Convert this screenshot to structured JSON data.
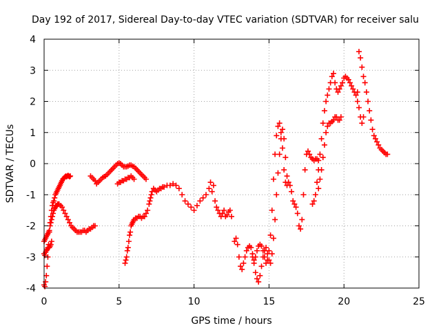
{
  "chart_data": {
    "type": "scatter",
    "title": "Day 192 of 2017, Sidereal Day-to-day VTEC variation (SDTVAR) for receiver salu",
    "xlabel": "GPS time / hours",
    "ylabel": "SDTVAR / TECUs",
    "xlim": [
      0,
      25
    ],
    "ylim": [
      -4,
      4
    ],
    "xticks": [
      "0",
      "5",
      "10",
      "15",
      "20",
      "25"
    ],
    "yticks": [
      "-4",
      "-3",
      "-2",
      "-1",
      "0",
      "1",
      "2",
      "3",
      "4"
    ],
    "grid": true,
    "marker": "plus",
    "color": "#ff0000",
    "series": [
      {
        "x": [
          0.0,
          0.05,
          0.1,
          0.15,
          0.2,
          0.25,
          0.3,
          0.35,
          0.4,
          0.45,
          0.5,
          0.55,
          0.6,
          0.65,
          0.7,
          0.75,
          0.8,
          0.85,
          0.9,
          0.95,
          1.0,
          1.05,
          1.1,
          1.15,
          1.2,
          1.25,
          1.3,
          1.35,
          1.4,
          1.45,
          1.5,
          1.55,
          1.6,
          1.65,
          1.7,
          1.75
        ],
        "y": [
          -3.9,
          -3.95,
          -3.8,
          -3.6,
          -3.3,
          -3.0,
          -2.6,
          -2.2,
          -1.9,
          -1.7,
          -1.5,
          -1.35,
          -1.25,
          -1.2,
          -1.1,
          -1.0,
          -0.95,
          -0.9,
          -0.85,
          -0.8,
          -0.75,
          -0.7,
          -0.65,
          -0.6,
          -0.55,
          -0.5,
          -0.48,
          -0.45,
          -0.42,
          -0.4,
          -0.42,
          -0.4,
          -0.38,
          -0.4,
          -0.42,
          -0.4
        ]
      },
      {
        "x": [
          0.0,
          0.05,
          0.1,
          0.15,
          0.2,
          0.25,
          0.3,
          0.35,
          0.4,
          0.45,
          0.5,
          0.55,
          0.6,
          0.65,
          0.7,
          0.75,
          0.8,
          0.85,
          0.9,
          0.95,
          1.0,
          1.1,
          1.2,
          1.3,
          1.4,
          1.5,
          1.6,
          1.7,
          1.8,
          1.9,
          2.0,
          2.1,
          2.2,
          2.3,
          2.4,
          2.5,
          2.6,
          2.7,
          2.8,
          2.9,
          3.0,
          3.1,
          3.2,
          3.3,
          3.4
        ],
        "y": [
          -2.5,
          -2.45,
          -2.4,
          -2.35,
          -2.3,
          -2.25,
          -2.2,
          -2.15,
          -2.0,
          -1.9,
          -1.8,
          -1.7,
          -1.6,
          -1.5,
          -1.45,
          -1.4,
          -1.35,
          -1.35,
          -1.3,
          -1.3,
          -1.3,
          -1.35,
          -1.4,
          -1.5,
          -1.6,
          -1.7,
          -1.8,
          -1.9,
          -2.0,
          -2.05,
          -2.1,
          -2.15,
          -2.2,
          -2.2,
          -2.2,
          -2.2,
          -2.15,
          -2.15,
          -2.2,
          -2.15,
          -2.1,
          -2.1,
          -2.05,
          -2.0,
          -2.0
        ]
      },
      {
        "x": [
          0.0,
          0.05,
          0.1,
          0.15,
          0.2,
          0.25,
          0.3,
          0.35,
          0.4,
          0.45,
          0.5
        ],
        "y": [
          -2.9,
          -2.95,
          -2.85,
          -2.8,
          -2.75,
          -2.7,
          -2.7,
          -2.7,
          -2.65,
          -2.6,
          -2.5
        ]
      },
      {
        "x": [
          3.1,
          3.2,
          3.3,
          3.4,
          3.5,
          3.6,
          3.7,
          3.8,
          3.9,
          4.0,
          4.1,
          4.2,
          4.3,
          4.4,
          4.5,
          4.6,
          4.7,
          4.8,
          4.9,
          5.0,
          5.1,
          5.2,
          5.3,
          5.4,
          5.5,
          5.6,
          5.7,
          5.8,
          5.9,
          6.0,
          6.1,
          6.2,
          6.3,
          6.4,
          6.5,
          6.6,
          6.7,
          6.8
        ],
        "y": [
          -0.4,
          -0.45,
          -0.5,
          -0.55,
          -0.65,
          -0.6,
          -0.55,
          -0.5,
          -0.45,
          -0.42,
          -0.4,
          -0.35,
          -0.3,
          -0.25,
          -0.2,
          -0.15,
          -0.1,
          -0.05,
          0.0,
          0.02,
          0.0,
          -0.05,
          -0.1,
          -0.1,
          -0.1,
          -0.08,
          -0.05,
          -0.05,
          -0.08,
          -0.1,
          -0.15,
          -0.2,
          -0.25,
          -0.3,
          -0.35,
          -0.4,
          -0.45,
          -0.5
        ]
      },
      {
        "x": [
          4.9,
          5.0,
          5.1,
          5.2,
          5.3,
          5.4,
          5.5,
          5.6,
          5.7,
          5.8,
          5.9,
          6.0
        ],
        "y": [
          -0.65,
          -0.6,
          -0.6,
          -0.55,
          -0.55,
          -0.5,
          -0.5,
          -0.45,
          -0.45,
          -0.4,
          -0.45,
          -0.5
        ]
      },
      {
        "x": [
          5.4,
          5.45,
          5.5,
          5.55,
          5.6,
          5.65,
          5.7,
          5.75,
          5.8,
          5.85,
          5.9,
          5.95,
          6.0,
          6.1,
          6.2,
          6.3,
          6.4,
          6.5,
          6.6,
          6.7,
          6.8,
          6.9,
          7.0,
          7.05,
          7.1,
          7.15,
          7.2,
          7.3,
          7.4,
          7.5,
          7.6,
          7.7,
          7.8,
          7.9,
          8.0,
          8.2,
          8.4,
          8.6,
          8.8,
          9.0,
          9.2,
          9.4,
          9.6,
          9.8,
          10.0,
          10.2,
          10.4,
          10.6,
          10.8,
          11.0,
          11.1,
          11.2,
          11.3,
          11.4,
          11.5,
          11.6,
          11.7,
          11.8,
          11.9,
          12.0,
          12.1,
          12.2,
          12.3,
          12.4,
          12.5
        ],
        "y": [
          -3.2,
          -3.1,
          -3.0,
          -2.8,
          -2.7,
          -2.5,
          -2.3,
          -2.2,
          -2.0,
          -1.95,
          -1.9,
          -1.85,
          -1.8,
          -1.75,
          -1.75,
          -1.7,
          -1.7,
          -1.75,
          -1.7,
          -1.7,
          -1.6,
          -1.5,
          -1.3,
          -1.2,
          -1.1,
          -1.0,
          -0.9,
          -0.8,
          -0.85,
          -0.9,
          -0.85,
          -0.8,
          -0.8,
          -0.75,
          -0.75,
          -0.7,
          -0.7,
          -0.65,
          -0.7,
          -0.8,
          -1.0,
          -1.2,
          -1.3,
          -1.4,
          -1.5,
          -1.35,
          -1.2,
          -1.1,
          -1.0,
          -0.8,
          -0.6,
          -0.9,
          -0.7,
          -1.2,
          -1.4,
          -1.5,
          -1.6,
          -1.7,
          -1.6,
          -1.5,
          -1.7,
          -1.65,
          -1.55,
          -1.5,
          -1.7
        ]
      },
      {
        "x": [
          12.7,
          12.8,
          12.9,
          13.0,
          13.1,
          13.2,
          13.3,
          13.4,
          13.5,
          13.6,
          13.7,
          13.8,
          13.9,
          14.0,
          14.1,
          14.2,
          14.3,
          14.4,
          14.5,
          14.6,
          14.7,
          14.8,
          14.9,
          15.0,
          15.1,
          15.2,
          15.3,
          15.4,
          15.5,
          15.6,
          15.7,
          15.8,
          15.9,
          16.0,
          16.1,
          16.2,
          16.3,
          16.4,
          16.5,
          16.6,
          16.7,
          16.8,
          16.9,
          17.0,
          17.1,
          17.2,
          17.3,
          17.4,
          17.5,
          17.6,
          17.7,
          17.8,
          17.9,
          18.0,
          18.1,
          18.2,
          18.3
        ],
        "y": [
          -2.5,
          -2.4,
          -2.6,
          -3.0,
          -3.3,
          -3.4,
          -3.2,
          -3.0,
          -2.8,
          -2.7,
          -2.65,
          -2.7,
          -2.9,
          -3.1,
          -3.0,
          -2.8,
          -2.65,
          -2.6,
          -2.65,
          -2.8,
          -3.0,
          -3.2,
          -3.1,
          -2.8,
          -2.3,
          -1.5,
          -0.5,
          0.3,
          0.9,
          1.2,
          1.3,
          1.0,
          0.5,
          -0.2,
          -0.6,
          -0.7,
          -0.6,
          -0.7,
          -0.9,
          -1.2,
          -1.3,
          -1.4,
          -1.6,
          -2.0,
          -2.1,
          -1.8,
          -1.0,
          -0.2,
          0.3,
          0.4,
          0.3,
          0.2,
          0.15,
          0.1,
          0.15,
          0.15,
          0.1
        ]
      },
      {
        "x": [
          13.9,
          14.0,
          14.1,
          14.2,
          14.3,
          14.4,
          14.5,
          14.6,
          14.7,
          14.8,
          14.9,
          15.0,
          15.1,
          15.2,
          15.3,
          15.4,
          15.5,
          15.6,
          15.7,
          15.8,
          15.9,
          16.0,
          16.1,
          16.2,
          16.3
        ],
        "y": [
          -3.0,
          -3.2,
          -3.5,
          -3.7,
          -3.8,
          -3.6,
          -3.3,
          -3.0,
          -2.8,
          -2.7,
          -2.9,
          -3.1,
          -3.2,
          -2.9,
          -2.4,
          -1.8,
          -1.0,
          -0.3,
          0.3,
          0.8,
          1.1,
          0.8,
          0.2,
          -0.4,
          -0.6
        ]
      },
      {
        "x": [
          17.9,
          18.0,
          18.1,
          18.2,
          18.3,
          18.4,
          18.5,
          18.6,
          18.7,
          18.8,
          18.9,
          19.0,
          19.1,
          19.2,
          19.3,
          19.4,
          19.5,
          19.6,
          19.7,
          19.8,
          19.9,
          20.0,
          20.1,
          20.2,
          20.3,
          20.4,
          20.5,
          20.6,
          20.7,
          20.8,
          20.9,
          21.0,
          21.1,
          21.2,
          21.3,
          21.4,
          21.5,
          21.6,
          21.7,
          21.8,
          21.9,
          22.0,
          22.1,
          22.2,
          22.3,
          22.4,
          22.5,
          22.6,
          22.7,
          22.8,
          22.9
        ],
        "y": [
          -1.3,
          -1.2,
          -1.0,
          -0.6,
          -0.2,
          0.3,
          0.8,
          1.3,
          1.7,
          2.0,
          2.2,
          2.4,
          2.6,
          2.8,
          2.9,
          2.6,
          2.4,
          2.3,
          2.4,
          2.5,
          2.6,
          2.75,
          2.8,
          2.75,
          2.7,
          2.6,
          2.5,
          2.4,
          2.3,
          2.2,
          2.3,
          3.6,
          3.4,
          3.1,
          2.8,
          2.6,
          2.3,
          2.0,
          1.7,
          1.4,
          1.1,
          0.9,
          0.8,
          0.7,
          0.6,
          0.5,
          0.45,
          0.4,
          0.35,
          0.3,
          0.3
        ]
      },
      {
        "x": [
          18.3,
          18.4,
          18.5,
          18.6,
          18.7,
          18.8,
          18.9,
          19.0,
          19.1,
          19.2,
          19.3,
          19.4,
          19.5,
          19.6,
          19.7,
          19.8,
          20.9,
          21.0,
          21.1,
          21.2,
          21.3
        ],
        "y": [
          -0.8,
          -0.5,
          -0.2,
          0.2,
          0.6,
          1.0,
          1.2,
          1.3,
          1.3,
          1.35,
          1.4,
          1.5,
          1.5,
          1.4,
          1.4,
          1.5,
          2.0,
          1.8,
          1.5,
          1.3,
          1.5
        ]
      }
    ]
  }
}
